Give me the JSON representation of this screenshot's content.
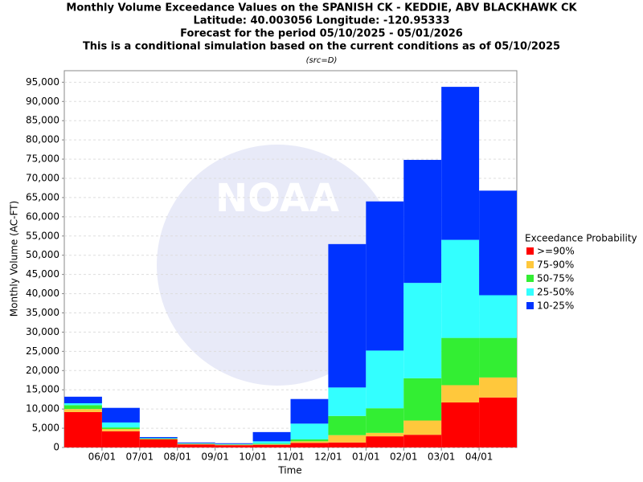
{
  "chart_data": {
    "type": "stacked-bar",
    "title_lines": [
      "Monthly Volume Exceedance Values on the SPANISH CK - KEDDIE, ABV BLACKHAWK CK",
      "Latitude: 40.003056 Longitude: -120.95333",
      "Forecast for the period 05/10/2025 - 05/01/2026",
      "This is a conditional simulation based on the current conditions as of 05/10/2025"
    ],
    "note": "(src=D)",
    "watermark": "NOAA",
    "y_label": "Monthly Volume (AC-FT)",
    "x_label": "Time",
    "legend_title": "Exceedance Probability",
    "categories": [
      null,
      null,
      null,
      null,
      null,
      null,
      null,
      null,
      null,
      null,
      null,
      null
    ],
    "x_tick_labels": [
      "06/01",
      "07/01",
      "08/01",
      "09/01",
      "10/01",
      "11/01",
      "12/01",
      "01/01",
      "02/01",
      "03/01",
      "04/01"
    ],
    "series": [
      {
        "name": ">=90%",
        "color": "#ff0000",
        "values": [
          9200,
          4200,
          2100,
          800,
          600,
          700,
          1200,
          1300,
          2900,
          3300,
          11700,
          13000
        ]
      },
      {
        "name": "75-90%",
        "color": "#ffc83c",
        "values": [
          800,
          600,
          100,
          100,
          100,
          100,
          400,
          1900,
          900,
          3700,
          4500,
          5200
        ]
      },
      {
        "name": "50-75%",
        "color": "#33ee33",
        "values": [
          1000,
          400,
          100,
          100,
          100,
          200,
          500,
          5000,
          6400,
          11000,
          12300,
          10300
        ]
      },
      {
        "name": "25-50%",
        "color": "#33ffff",
        "values": [
          500,
          1300,
          100,
          100,
          100,
          600,
          4100,
          7400,
          15000,
          24800,
          25500,
          11100
        ]
      },
      {
        "name": "10-25%",
        "color": "#0033ff",
        "values": [
          1700,
          3800,
          300,
          200,
          200,
          2400,
          6400,
          37300,
          38800,
          32000,
          39800,
          27200
        ]
      }
    ],
    "ylim": [
      0,
      98000
    ],
    "yticks": [
      0,
      {
        "value": 5000,
        "label": "5,000"
      },
      {
        "value": 10000,
        "label": "10,000"
      },
      {
        "value": 15000,
        "label": "15,000"
      },
      {
        "value": 20000,
        "label": "20,000"
      },
      {
        "value": 25000,
        "label": "25,000"
      },
      {
        "value": 30000,
        "label": "30,000"
      },
      {
        "value": 35000,
        "label": "35,000"
      },
      {
        "value": 40000,
        "label": "40,000"
      },
      {
        "value": 45000,
        "label": "45,000"
      },
      {
        "value": 50000,
        "label": "50,000"
      },
      {
        "value": 55000,
        "label": "55,000"
      },
      {
        "value": 60000,
        "label": "60,000"
      },
      {
        "value": 65000,
        "label": "65,000"
      },
      {
        "value": 70000,
        "label": "70,000"
      },
      {
        "value": 75000,
        "label": "75,000"
      },
      {
        "value": 80000,
        "label": "80,000"
      },
      {
        "value": 85000,
        "label": "85,000"
      },
      {
        "value": 90000,
        "label": "90,000"
      },
      {
        "value": 95000,
        "label": "95,000"
      }
    ],
    "grid": true
  }
}
